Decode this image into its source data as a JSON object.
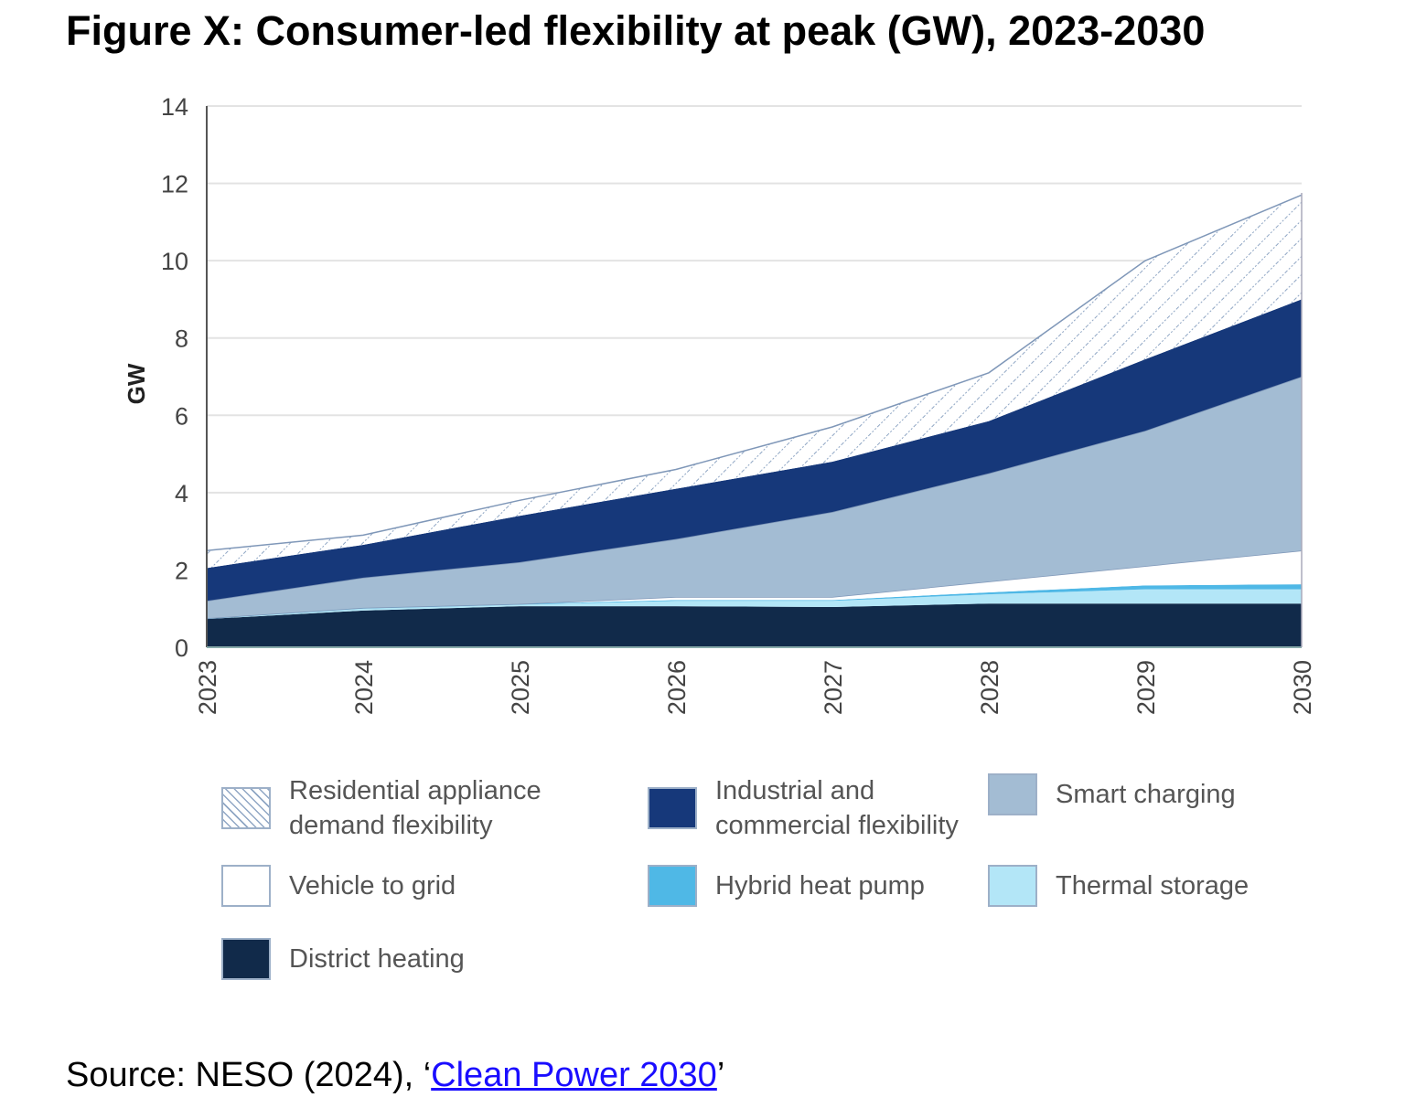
{
  "title": "Figure X: Consumer-led flexibility at peak (GW), 2023-2030",
  "chart_data": {
    "type": "area",
    "stacked": true,
    "title": "Figure X: Consumer-led flexibility at peak (GW), 2023-2030",
    "xlabel": "",
    "ylabel": "GW",
    "ylim": [
      0,
      14
    ],
    "yticks": [
      0,
      2,
      4,
      6,
      8,
      10,
      12,
      14
    ],
    "grid": true,
    "legend_position": "bottom",
    "categories": [
      "2023",
      "2024",
      "2025",
      "2026",
      "2027",
      "2028",
      "2029",
      "2030"
    ],
    "series": [
      {
        "name": "District heating",
        "color": "#112a4a",
        "values": [
          0.73,
          0.95,
          1.06,
          1.06,
          1.04,
          1.13,
          1.13,
          1.13
        ]
      },
      {
        "name": "Thermal storage",
        "color": "#b3e6f7",
        "values": [
          0,
          0.05,
          0.04,
          0.14,
          0.16,
          0.24,
          0.37,
          0.37
        ]
      },
      {
        "name": "Hybrid heat pump",
        "color": "#4fb8e6",
        "values": [
          0.02,
          0.02,
          0.02,
          0.02,
          0.02,
          0.05,
          0.1,
          0.13
        ]
      },
      {
        "name": "Vehicle to grid",
        "color": "#ffffff",
        "values": [
          0,
          0,
          0,
          0.08,
          0.08,
          0.28,
          0.5,
          0.87
        ]
      },
      {
        "name": "Smart charging",
        "color": "#a3bcd3",
        "values": [
          0.45,
          0.78,
          1.08,
          1.5,
          2.2,
          2.8,
          3.5,
          4.5
        ]
      },
      {
        "name": "Industrial and commercial flexibility",
        "color": "#16387a",
        "values": [
          0.85,
          0.85,
          1.2,
          1.3,
          1.3,
          1.35,
          1.85,
          2.0
        ]
      },
      {
        "name": "Residential appliance demand flexibility",
        "color": "hatched",
        "values": [
          0.45,
          0.25,
          0.4,
          0.5,
          0.9,
          1.25,
          2.55,
          2.7
        ]
      }
    ]
  },
  "legend": [
    {
      "line1": "Residential appliance",
      "line2": "demand flexibility",
      "swatch": "hatched"
    },
    {
      "line1": "Industrial and",
      "line2": "commercial flexibility",
      "swatch": "#16387a"
    },
    {
      "line1": "Smart charging",
      "line2": "",
      "swatch": "#a3bcd3"
    },
    {
      "line1": "Vehicle to grid",
      "line2": "",
      "swatch": "#ffffff"
    },
    {
      "line1": "Hybrid heat pump",
      "line2": "",
      "swatch": "#4fb8e6"
    },
    {
      "line1": "Thermal storage",
      "line2": "",
      "swatch": "#b3e6f7"
    },
    {
      "line1": "District heating",
      "line2": "",
      "swatch": "#112a4a"
    }
  ],
  "source": {
    "prefix": "Source: NESO (2024), ‘",
    "link": "Clean Power 2030",
    "suffix": "’"
  }
}
